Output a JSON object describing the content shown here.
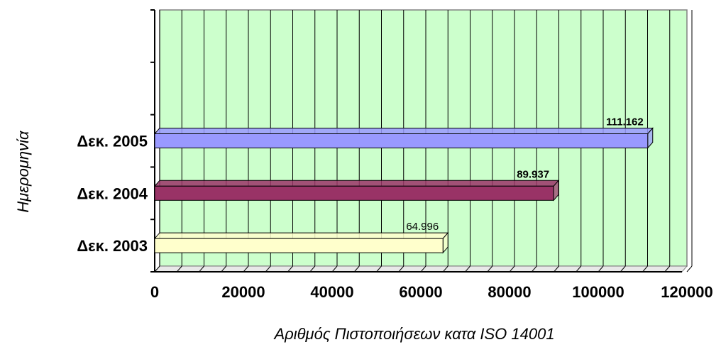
{
  "chart_data": {
    "type": "bar",
    "orientation": "horizontal",
    "categories": [
      "Δεκ. 2003",
      "Δεκ. 2004",
      "Δεκ. 2005"
    ],
    "values": [
      64996,
      89937,
      111162
    ],
    "data_labels": [
      "64.996",
      "89.937",
      "111.162"
    ],
    "bar_colors": [
      "#ffffcc",
      "#993366",
      "#9999ff"
    ],
    "xlabel": "Αριθμός Πιστοποιήσεων κατα ISO 14001",
    "ylabel": "Ημερομηνία",
    "xlim": [
      0,
      120000
    ],
    "x_ticks": [
      "0",
      "20000",
      "40000",
      "60000",
      "80000",
      "100000",
      "120000"
    ],
    "x_tick_values": [
      0,
      20000,
      40000,
      60000,
      80000,
      100000,
      120000
    ],
    "grid": true,
    "plot_background": "#ccffcc",
    "legend": "none"
  }
}
